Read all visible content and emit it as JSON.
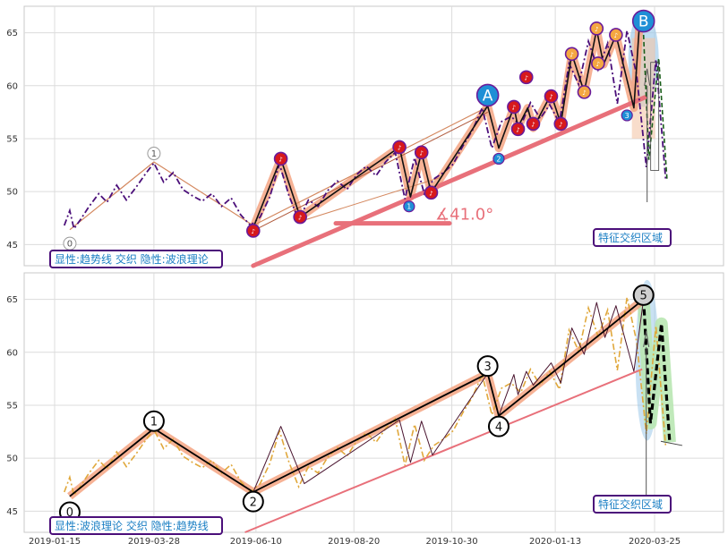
{
  "chart_data": [
    {
      "type": "line",
      "panel": "top",
      "title": "",
      "xlabel": "",
      "ylabel": "",
      "ylim": [
        43,
        67.5
      ],
      "yticks": [
        "45",
        "50",
        "55",
        "60",
        "65"
      ],
      "grid": true,
      "caption": "显性:趋势线 交织 隐性:波浪理论",
      "region_label": "特征交织区域",
      "angle_label": "∡41.0°",
      "colors": {
        "price": "#4b0f7a",
        "trend": "#e8707a",
        "highlight": "#f4a582",
        "zone": "#9dc9ea"
      },
      "series": [
        {
          "values": [
            [
              "2019-01-22",
              46.8
            ],
            [
              "2019-01-26",
              48.2
            ],
            [
              "2019-01-29",
              46.5
            ],
            [
              "2019-02-03",
              47.4
            ],
            [
              "2019-02-09",
              48.6
            ],
            [
              "2019-02-16",
              49.8
            ],
            [
              "2019-02-22",
              49.0
            ],
            [
              "2019-03-01",
              50.6
            ],
            [
              "2019-03-08",
              49.2
            ],
            [
              "2019-03-15",
              50.4
            ],
            [
              "2019-03-22",
              51.7
            ],
            [
              "2019-03-28",
              52.7
            ],
            [
              "2019-04-04",
              50.9
            ],
            [
              "2019-04-11",
              51.8
            ],
            [
              "2019-04-18",
              50.2
            ],
            [
              "2019-04-25",
              49.6
            ],
            [
              "2019-05-02",
              49.1
            ],
            [
              "2019-05-09",
              49.8
            ],
            [
              "2019-05-16",
              48.6
            ],
            [
              "2019-05-23",
              49.4
            ],
            [
              "2019-05-30",
              47.8
            ],
            [
              "2019-06-06",
              46.8
            ],
            [
              "2019-06-13",
              47.6
            ],
            [
              "2019-06-20",
              49.5
            ],
            [
              "2019-06-27",
              52.6
            ],
            [
              "2019-07-04",
              49.6
            ],
            [
              "2019-07-11",
              47.3
            ],
            [
              "2019-07-18",
              49.2
            ],
            [
              "2019-07-25",
              48.6
            ],
            [
              "2019-08-01",
              50.1
            ],
            [
              "2019-08-08",
              51.0
            ],
            [
              "2019-08-15",
              50.2
            ],
            [
              "2019-08-22",
              51.6
            ],
            [
              "2019-08-29",
              52.4
            ],
            [
              "2019-09-05",
              51.5
            ],
            [
              "2019-09-12",
              52.8
            ],
            [
              "2019-09-19",
              53.7
            ],
            [
              "2019-09-26",
              49.3
            ],
            [
              "2019-10-03",
              53.2
            ],
            [
              "2019-10-10",
              49.8
            ],
            [
              "2019-10-17",
              51.2
            ],
            [
              "2019-10-24",
              51.8
            ],
            [
              "2019-10-31",
              52.6
            ],
            [
              "2019-11-07",
              54.3
            ],
            [
              "2019-11-14",
              55.8
            ],
            [
              "2019-11-21",
              57.9
            ],
            [
              "2019-11-28",
              54.1
            ],
            [
              "2019-12-05",
              56.6
            ],
            [
              "2019-12-12",
              57.1
            ],
            [
              "2019-12-19",
              56.2
            ],
            [
              "2019-12-26",
              58.4
            ],
            [
              "2020-01-02",
              56.9
            ],
            [
              "2020-01-09",
              58.2
            ],
            [
              "2020-01-16",
              56.5
            ],
            [
              "2020-01-23",
              62.1
            ],
            [
              "2020-01-30",
              60.1
            ],
            [
              "2020-02-06",
              64.2
            ],
            [
              "2020-02-13",
              61.5
            ],
            [
              "2020-02-20",
              64.0
            ],
            [
              "2020-02-27",
              58.3
            ],
            [
              "2020-03-05",
              65.2
            ],
            [
              "2020-03-12",
              61.0
            ],
            [
              "2020-03-19",
              52.3
            ],
            [
              "2020-03-26",
              62.5
            ],
            [
              "2020-04-02",
              51.2
            ]
          ]
        }
      ],
      "trendlines": [
        {
          "from": [
            "2019-06-08",
            43.0
          ],
          "to": [
            "2020-03-18",
            58.9
          ]
        },
        {
          "from": [
            "2019-01-26",
            46.4
          ],
          "to": [
            "2019-03-28",
            52.8
          ]
        },
        {
          "from": [
            "2019-03-28",
            52.8
          ],
          "to": [
            "2019-06-08",
            46.8
          ]
        },
        {
          "from": [
            "2019-06-08",
            46.8
          ],
          "to": [
            "2019-11-25",
            58.0
          ]
        },
        {
          "from": [
            "2019-06-08",
            46.3
          ],
          "to": [
            "2019-11-25",
            57.5
          ]
        },
        {
          "from": [
            "2019-07-10",
            47.1
          ],
          "to": [
            "2019-10-21",
            51.3
          ]
        }
      ],
      "wave_path": [
        [
          "2019-06-08",
          46.6
        ],
        [
          "2019-06-28",
          53.1
        ],
        [
          "2019-07-12",
          47.6
        ],
        [
          "2019-09-22",
          54.2
        ],
        [
          "2019-09-30",
          49.5
        ],
        [
          "2019-10-08",
          53.7
        ],
        [
          "2019-10-15",
          49.9
        ],
        [
          "2019-11-25",
          58.1
        ],
        [
          "2019-12-03",
          54.1
        ],
        [
          "2019-12-14",
          58.0
        ],
        [
          "2019-12-17",
          56.1
        ],
        [
          "2019-12-24",
          57.9
        ],
        [
          "2019-12-28",
          56.0
        ],
        [
          "2020-01-10",
          59.2
        ],
        [
          "2020-01-17",
          56.4
        ],
        [
          "2020-01-25",
          63.0
        ],
        [
          "2020-02-03",
          59.4
        ],
        [
          "2020-02-12",
          65.3
        ],
        [
          "2020-02-17",
          62.0
        ],
        [
          "2020-02-26",
          64.8
        ],
        [
          "2020-03-10",
          57.9
        ],
        [
          "2020-03-14",
          65.8
        ]
      ],
      "markers": [
        {
          "x": "2019-03-28",
          "y": 53.6,
          "label": "1"
        },
        {
          "x": "2019-01-26",
          "y": 45.1,
          "label": "0"
        },
        {
          "x": "2019-11-25",
          "y": 59.1,
          "label": "A"
        },
        {
          "x": "2020-03-17",
          "y": 66.1,
          "label": "B"
        },
        {
          "x": "2019-12-03",
          "y": 53.1,
          "label": "2"
        },
        {
          "x": "2020-03-05",
          "y": 57.2,
          "label": "3"
        },
        {
          "x": "2019-09-29",
          "y": 48.6,
          "label": "1"
        }
      ],
      "note_markers": [
        [
          "2019-06-08",
          46.3
        ],
        [
          "2019-06-28",
          53.1
        ],
        [
          "2019-07-12",
          47.6
        ],
        [
          "2019-09-22",
          54.2
        ],
        [
          "2019-10-08",
          53.7
        ],
        [
          "2019-10-15",
          49.9
        ],
        [
          "2019-12-14",
          58.0
        ],
        [
          "2019-12-17",
          55.9
        ],
        [
          "2019-12-23",
          60.8
        ],
        [
          "2019-12-28",
          56.4
        ],
        [
          "2020-01-10",
          59.0
        ],
        [
          "2020-01-17",
          56.4
        ],
        [
          "2020-01-25",
          63.0
        ],
        [
          "2020-02-03",
          59.4
        ],
        [
          "2020-02-12",
          65.4
        ],
        [
          "2020-02-13",
          62.1
        ],
        [
          "2020-02-26",
          64.8
        ]
      ]
    },
    {
      "type": "line",
      "panel": "bottom",
      "title": "",
      "xlabel": "",
      "ylabel": "",
      "ylim": [
        43,
        67.5
      ],
      "yticks": [
        "45",
        "50",
        "55",
        "60",
        "65"
      ],
      "xticks": [
        "2019-01-15",
        "2019-03-28",
        "2019-06-10",
        "2019-08-20",
        "2019-10-30",
        "2020-01-13",
        "2020-03-25"
      ],
      "grid": true,
      "caption": "显性:波浪理论 交织 隐性:趋势线",
      "region_label": "特征交织区域",
      "colors": {
        "price": "#e0a83c",
        "wave": "#000000",
        "trend": "#e8707a",
        "highlight": "#f4a582",
        "zone": "#b9e7b3"
      },
      "series": [
        {
          "values": [
            [
              "2019-01-22",
              46.8
            ],
            [
              "2019-01-26",
              48.2
            ],
            [
              "2019-01-29",
              46.5
            ],
            [
              "2019-02-03",
              47.4
            ],
            [
              "2019-02-09",
              48.6
            ],
            [
              "2019-02-16",
              49.8
            ],
            [
              "2019-02-22",
              49.0
            ],
            [
              "2019-03-01",
              50.6
            ],
            [
              "2019-03-08",
              49.2
            ],
            [
              "2019-03-15",
              50.4
            ],
            [
              "2019-03-22",
              51.7
            ],
            [
              "2019-03-28",
              52.7
            ],
            [
              "2019-04-04",
              50.9
            ],
            [
              "2019-04-11",
              51.8
            ],
            [
              "2019-04-18",
              50.2
            ],
            [
              "2019-04-25",
              49.6
            ],
            [
              "2019-05-02",
              49.1
            ],
            [
              "2019-05-09",
              49.8
            ],
            [
              "2019-05-16",
              48.6
            ],
            [
              "2019-05-23",
              49.4
            ],
            [
              "2019-05-30",
              47.8
            ],
            [
              "2019-06-06",
              46.8
            ],
            [
              "2019-06-13",
              47.6
            ],
            [
              "2019-06-20",
              49.5
            ],
            [
              "2019-06-27",
              52.6
            ],
            [
              "2019-07-04",
              49.6
            ],
            [
              "2019-07-11",
              47.3
            ],
            [
              "2019-07-18",
              49.2
            ],
            [
              "2019-07-25",
              48.6
            ],
            [
              "2019-08-01",
              50.1
            ],
            [
              "2019-08-08",
              51.0
            ],
            [
              "2019-08-15",
              50.2
            ],
            [
              "2019-08-22",
              51.6
            ],
            [
              "2019-08-29",
              52.4
            ],
            [
              "2019-09-05",
              51.5
            ],
            [
              "2019-09-12",
              52.8
            ],
            [
              "2019-09-19",
              53.7
            ],
            [
              "2019-09-26",
              49.3
            ],
            [
              "2019-10-03",
              53.2
            ],
            [
              "2019-10-10",
              49.8
            ],
            [
              "2019-10-17",
              51.2
            ],
            [
              "2019-10-24",
              51.8
            ],
            [
              "2019-10-31",
              52.6
            ],
            [
              "2019-11-07",
              54.3
            ],
            [
              "2019-11-14",
              55.8
            ],
            [
              "2019-11-21",
              57.9
            ],
            [
              "2019-11-28",
              54.1
            ],
            [
              "2019-12-05",
              56.6
            ],
            [
              "2019-12-12",
              57.1
            ],
            [
              "2019-12-19",
              56.2
            ],
            [
              "2019-12-26",
              58.4
            ],
            [
              "2020-01-02",
              56.9
            ],
            [
              "2020-01-09",
              58.2
            ],
            [
              "2020-01-16",
              56.5
            ],
            [
              "2020-01-23",
              62.1
            ],
            [
              "2020-01-30",
              60.1
            ],
            [
              "2020-02-06",
              64.2
            ],
            [
              "2020-02-13",
              61.5
            ],
            [
              "2020-02-20",
              64.0
            ],
            [
              "2020-02-27",
              58.3
            ],
            [
              "2020-03-05",
              65.2
            ],
            [
              "2020-03-12",
              61.0
            ],
            [
              "2020-03-19",
              52.3
            ],
            [
              "2020-03-26",
              62.5
            ],
            [
              "2020-04-02",
              51.2
            ]
          ]
        }
      ],
      "wave_main": [
        [
          "2019-01-26",
          46.4
        ],
        [
          "2019-03-28",
          52.8
        ],
        [
          "2019-06-08",
          46.8
        ],
        [
          "2019-11-25",
          58.0
        ],
        [
          "2019-12-03",
          54.0
        ],
        [
          "2020-03-17",
          65.0
        ]
      ],
      "wave_thin": [
        [
          "2019-06-08",
          46.8
        ],
        [
          "2019-06-28",
          53.0
        ],
        [
          "2019-07-15",
          47.6
        ],
        [
          "2019-09-22",
          53.6
        ],
        [
          "2019-09-30",
          49.6
        ],
        [
          "2019-10-08",
          53.5
        ],
        [
          "2019-10-16",
          50.3
        ],
        [
          "2019-11-25",
          58.0
        ],
        [
          "2019-12-03",
          54.0
        ],
        [
          "2019-12-14",
          57.9
        ],
        [
          "2019-12-17",
          56.0
        ],
        [
          "2019-12-23",
          58.2
        ],
        [
          "2019-12-28",
          56.9
        ],
        [
          "2020-01-10",
          59.0
        ],
        [
          "2020-01-17",
          57.1
        ],
        [
          "2020-01-25",
          62.3
        ],
        [
          "2020-02-03",
          59.8
        ],
        [
          "2020-02-12",
          64.7
        ],
        [
          "2020-02-18",
          61.4
        ],
        [
          "2020-02-26",
          64.4
        ],
        [
          "2020-03-10",
          58.2
        ],
        [
          "2020-03-17",
          65.0
        ]
      ],
      "trendlines": [
        {
          "from": [
            "2019-06-02",
            43.0
          ],
          "to": [
            "2020-03-16",
            58.4
          ]
        }
      ],
      "forecast": [
        [
          "2020-03-17",
          65.0
        ],
        [
          "2020-03-22",
          53.3
        ],
        [
          "2020-03-30",
          62.7
        ],
        [
          "2020-04-05",
          51.5
        ]
      ],
      "markers": [
        {
          "x": "2019-01-26",
          "y": 44.9,
          "label": "0"
        },
        {
          "x": "2019-03-28",
          "y": 53.5,
          "label": "1"
        },
        {
          "x": "2019-06-08",
          "y": 45.9,
          "label": "2"
        },
        {
          "x": "2019-11-25",
          "y": 58.7,
          "label": "3"
        },
        {
          "x": "2019-12-03",
          "y": 53.0,
          "label": "4"
        },
        {
          "x": "2020-03-17",
          "y": 65.4,
          "label": "5"
        }
      ]
    }
  ]
}
